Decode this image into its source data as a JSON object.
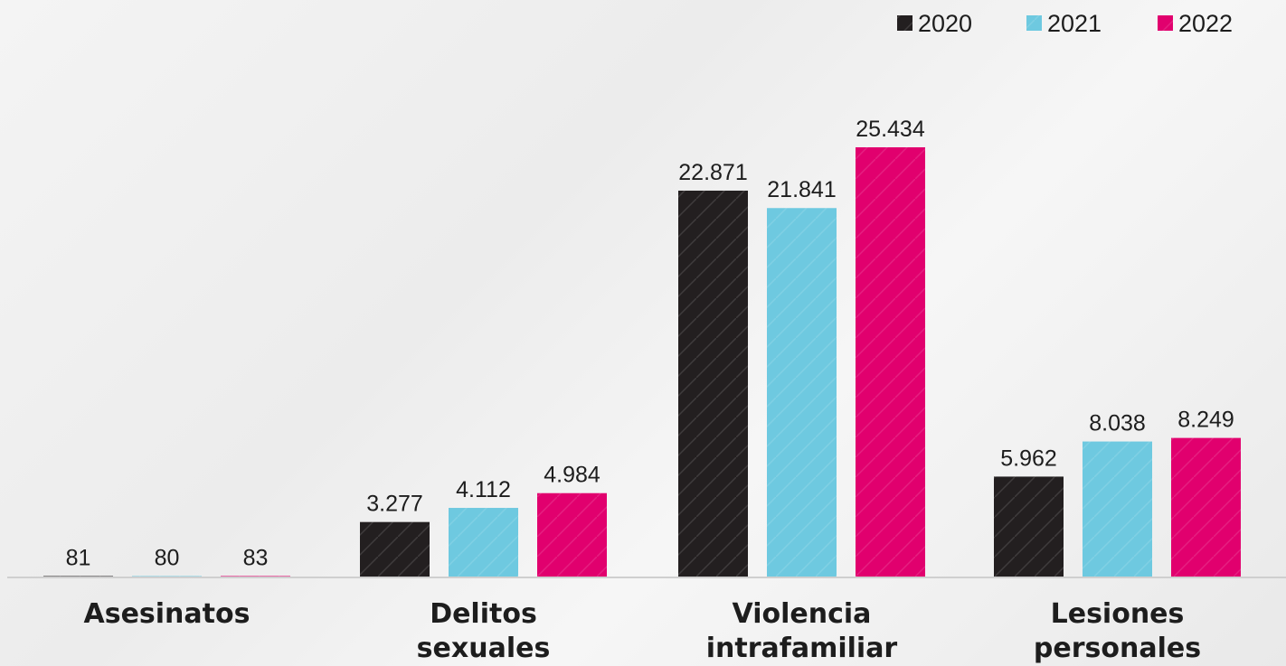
{
  "chart_data": {
    "type": "bar",
    "categories": [
      "Asesinatos",
      "Delitos sexuales",
      "Violencia intrafamiliar",
      "Lesiones personales"
    ],
    "category_lines": [
      [
        "Asesinatos"
      ],
      [
        "Delitos",
        "sexuales"
      ],
      [
        "Violencia",
        "intrafamiliar"
      ],
      [
        "Lesiones",
        "personales"
      ]
    ],
    "series": [
      {
        "name": "2020",
        "color": "#231f20",
        "values": [
          81,
          3277,
          22871,
          5962
        ],
        "labels": [
          "81",
          "3.277",
          "22.871",
          "5.962"
        ]
      },
      {
        "name": "2021",
        "color": "#6ec9e0",
        "values": [
          80,
          4112,
          21841,
          8038
        ],
        "labels": [
          "80",
          "4.112",
          "21.841",
          "8.038"
        ]
      },
      {
        "name": "2022",
        "color": "#e1006e",
        "values": [
          83,
          4984,
          25434,
          8249
        ],
        "labels": [
          "83",
          "4.984",
          "25.434",
          "8.249"
        ]
      }
    ],
    "legend_position": "top-right",
    "grid": false,
    "title": "",
    "xlabel": "",
    "ylabel": ""
  }
}
